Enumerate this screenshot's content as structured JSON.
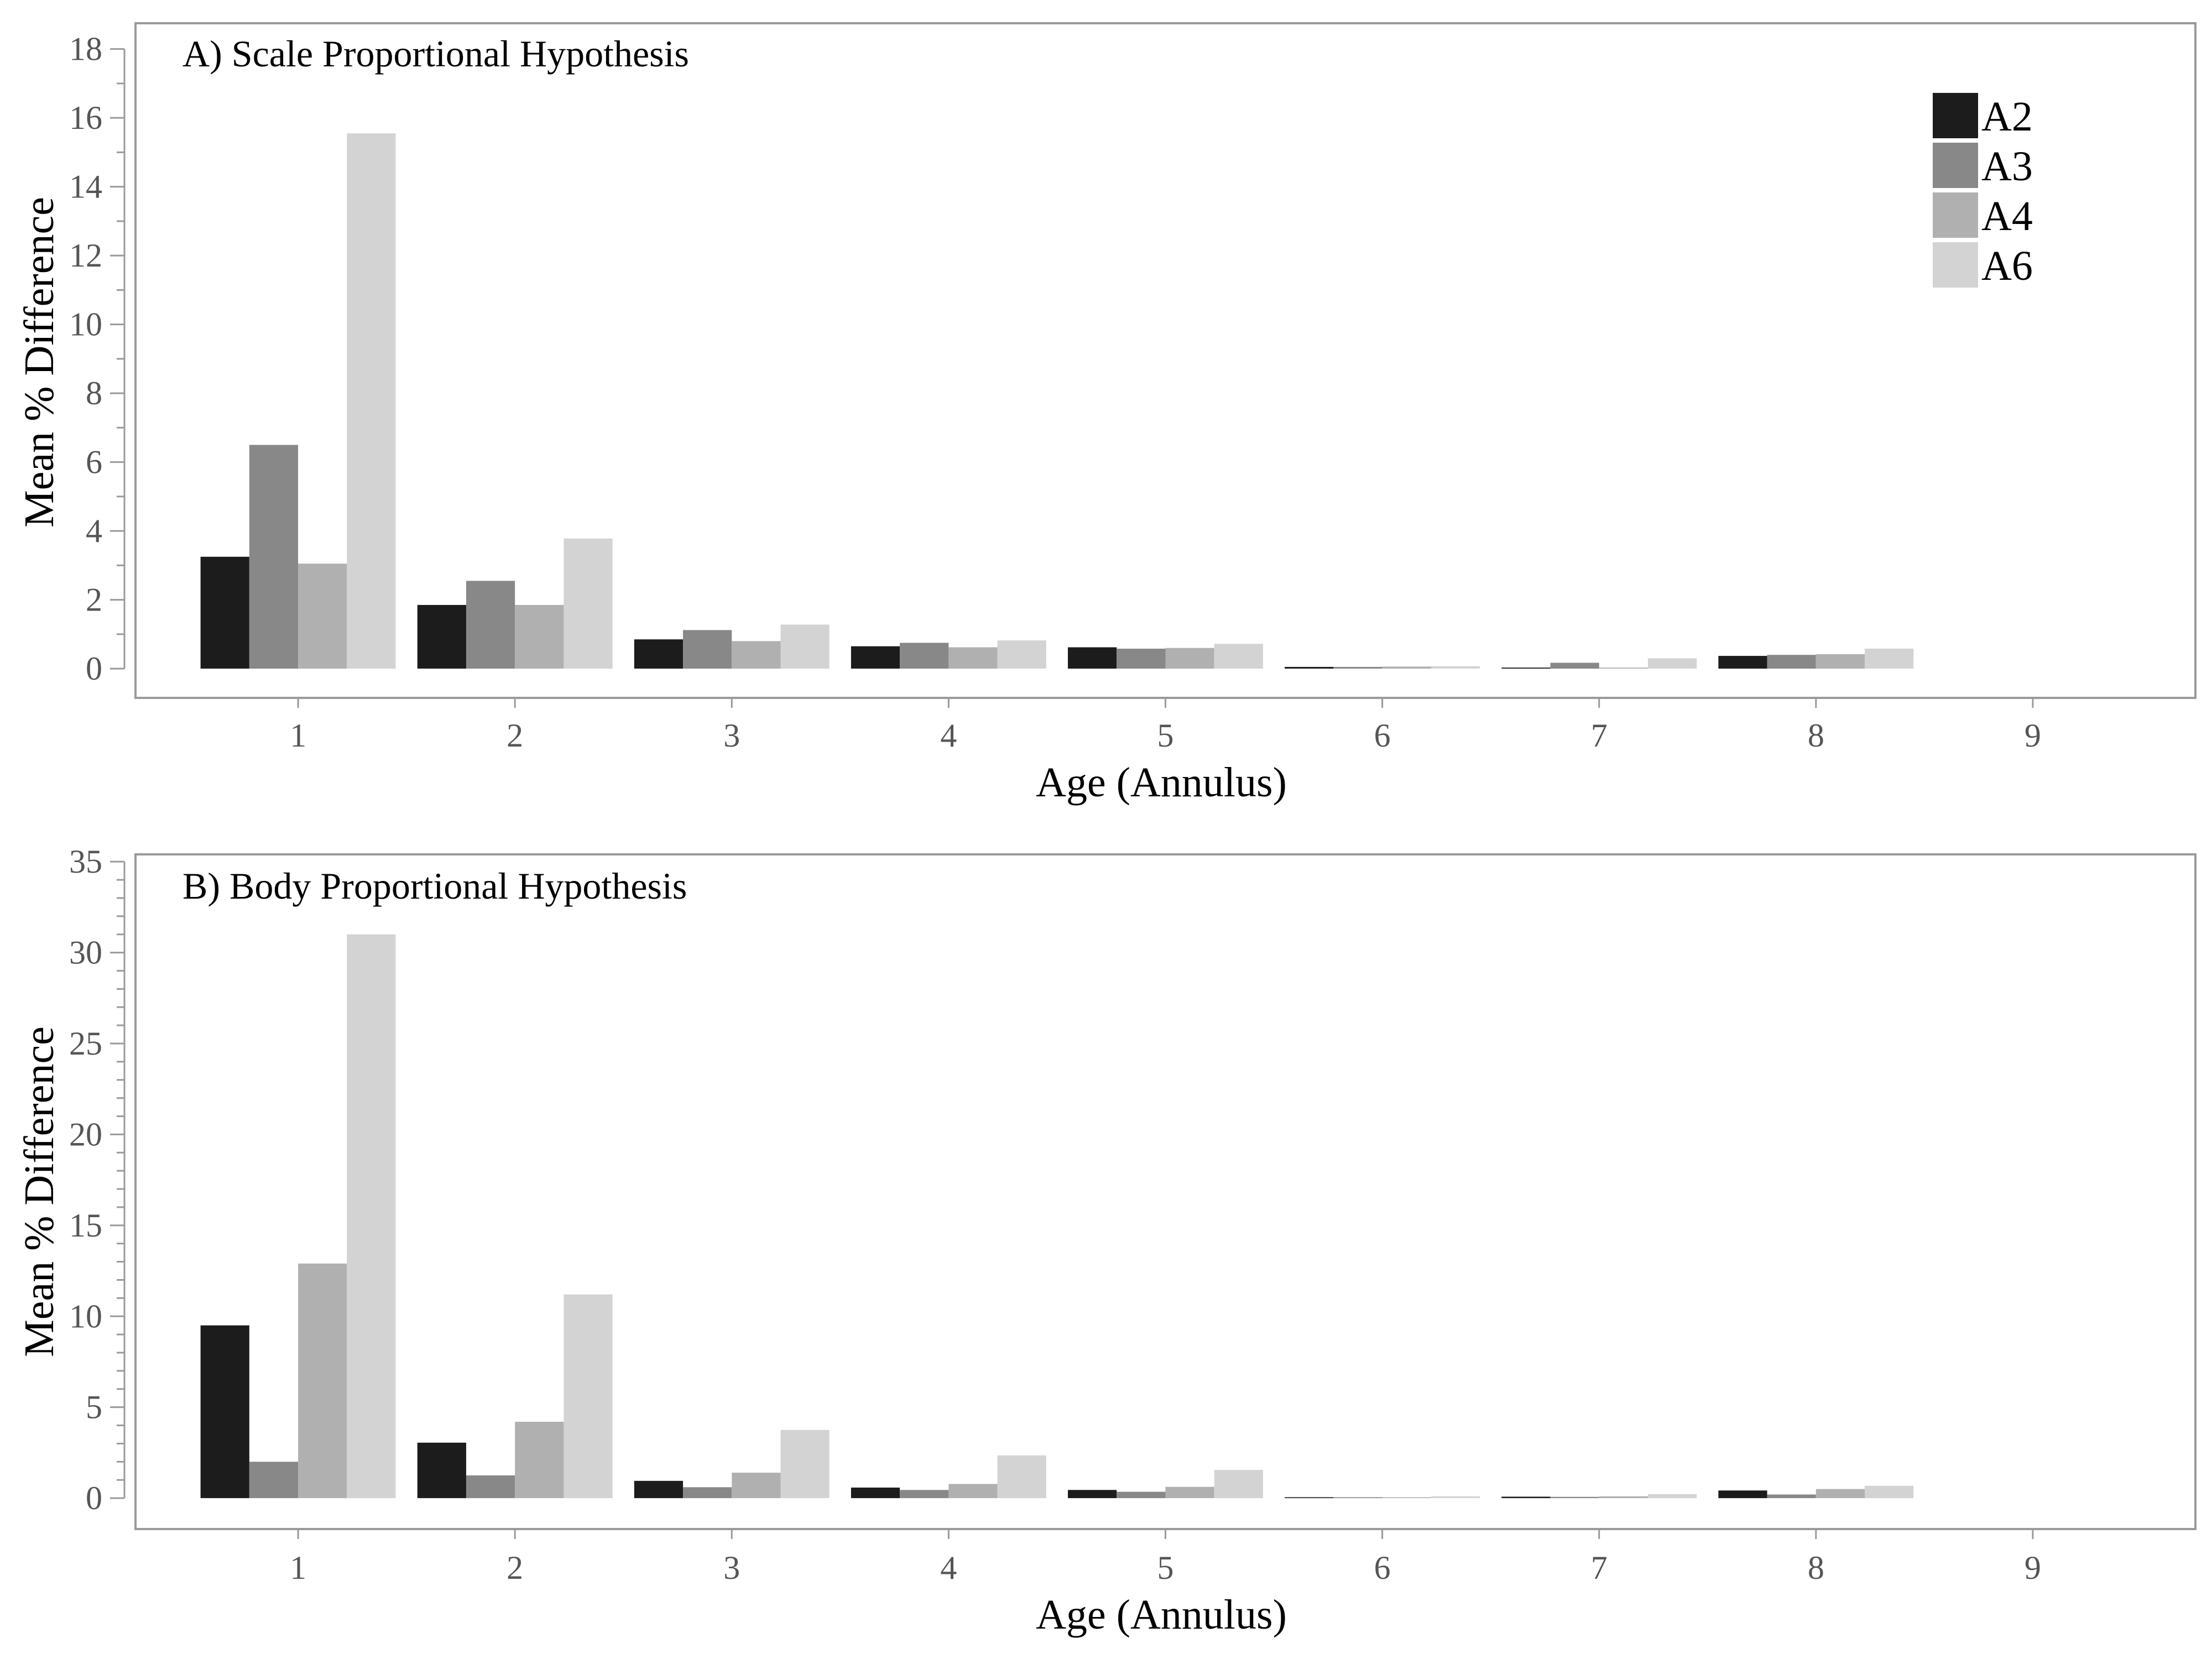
{
  "chart_data": [
    {
      "type": "bar",
      "title": "A) Scale Proportional Hypothesis",
      "xlabel": "Age (Annulus)",
      "ylabel": "Mean % Difference",
      "categories": [
        "1",
        "2",
        "3",
        "4",
        "5",
        "6",
        "7",
        "8",
        "9"
      ],
      "ylim": [
        -0.85,
        18.75
      ],
      "yticks": [
        0,
        2,
        4,
        6,
        8,
        10,
        12,
        14,
        16,
        18
      ],
      "yminor_step": 1,
      "grid": false,
      "legend": "top-right",
      "series": [
        {
          "name": "A2",
          "color": "#1c1c1c",
          "values": [
            3.25,
            1.85,
            0.85,
            0.65,
            0.62,
            0.05,
            0.03,
            0.37,
            0
          ]
        },
        {
          "name": "A3",
          "color": "#888888",
          "values": [
            6.5,
            2.55,
            1.12,
            0.75,
            0.58,
            0.05,
            0.17,
            0.4,
            0
          ]
        },
        {
          "name": "A4",
          "color": "#b0b0b0",
          "values": [
            3.05,
            1.85,
            0.8,
            0.62,
            0.6,
            0.06,
            0.03,
            0.42,
            0
          ]
        },
        {
          "name": "A6",
          "color": "#d3d3d3",
          "values": [
            15.55,
            3.78,
            1.28,
            0.82,
            0.72,
            0.07,
            0.3,
            0.58,
            0
          ]
        }
      ]
    },
    {
      "type": "bar",
      "title": "B) Body Proportional Hypothesis",
      "xlabel": "Age (Annulus)",
      "ylabel": "Mean % Difference",
      "categories": [
        "1",
        "2",
        "3",
        "4",
        "5",
        "6",
        "7",
        "8",
        "9"
      ],
      "ylim": [
        -1.7,
        35.4
      ],
      "yticks": [
        0,
        5,
        10,
        15,
        20,
        25,
        30,
        35
      ],
      "yminor_step": 1,
      "grid": false,
      "legend": "none",
      "series": [
        {
          "name": "A2",
          "color": "#1c1c1c",
          "values": [
            9.5,
            3.05,
            0.95,
            0.58,
            0.45,
            0.05,
            0.08,
            0.42,
            0
          ]
        },
        {
          "name": "A3",
          "color": "#888888",
          "values": [
            2.0,
            1.25,
            0.6,
            0.45,
            0.35,
            0.05,
            0.07,
            0.2,
            0
          ]
        },
        {
          "name": "A4",
          "color": "#b0b0b0",
          "values": [
            12.9,
            4.2,
            1.4,
            0.78,
            0.62,
            0.05,
            0.1,
            0.5,
            0
          ]
        },
        {
          "name": "A6",
          "color": "#d3d3d3",
          "values": [
            31.0,
            11.2,
            3.75,
            2.35,
            1.55,
            0.1,
            0.22,
            0.68,
            0
          ]
        }
      ]
    }
  ]
}
